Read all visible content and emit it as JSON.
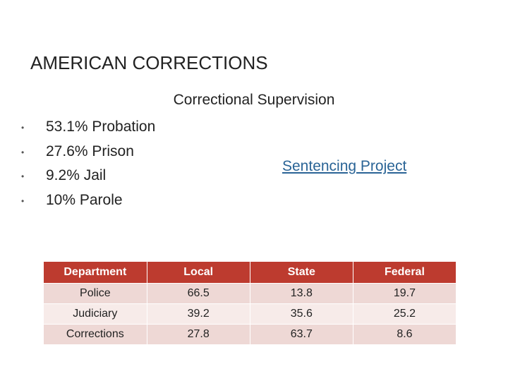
{
  "title": "AMERICAN CORRECTIONS",
  "subtitle": "Correctional Supervision",
  "bullets": [
    "53.1% Probation",
    "27.6% Prison",
    "9.2% Jail",
    "10% Parole"
  ],
  "link": "Sentencing Project",
  "table": {
    "header": [
      "Department",
      "Local",
      "State",
      "Federal"
    ],
    "rows": [
      [
        "Police",
        66.5,
        13.8,
        19.7
      ],
      [
        "Judiciary",
        39.2,
        35.6,
        25.2
      ],
      [
        "Corrections",
        27.8,
        63.7,
        8.6
      ]
    ]
  }
}
